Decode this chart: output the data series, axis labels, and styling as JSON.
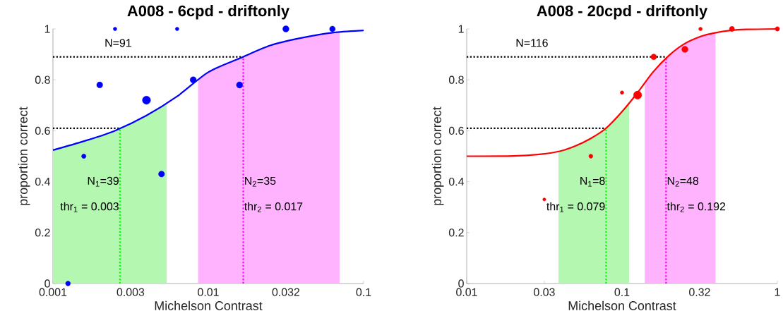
{
  "chart_data": [
    {
      "type": "line",
      "title": "A008 - 6cpd - driftonly",
      "xlabel": "Michelson Contrast",
      "ylabel": "proportion correct",
      "log": "x",
      "xlim": [
        0.001,
        0.1
      ],
      "xticks": [
        0.001,
        {
          "value": 0.00316,
          "label": "0.003"
        },
        0.01,
        {
          "value": 0.0316,
          "label": "0.032"
        },
        0.1
      ],
      "ylim": [
        0,
        1
      ],
      "yticks": [
        0,
        0.2,
        0.4,
        0.6,
        0.8,
        1
      ],
      "series": [
        {
          "type": "area",
          "color": "#b3f7b0",
          "x": [
            0.001,
            0.0016,
            0.0025,
            0.004,
            0.0054
          ],
          "values": [
            0.524,
            0.56,
            0.6,
            0.66,
            0.705
          ]
        },
        {
          "type": "area",
          "color": "#ffb3ff",
          "x": [
            0.0086,
            0.01,
            0.016,
            0.025,
            0.04,
            0.063,
            0.07
          ],
          "values": [
            0.8,
            0.83,
            0.885,
            0.935,
            0.965,
            0.985,
            0.987
          ]
        },
        {
          "color": "#0000ff",
          "x": [
            0.001,
            0.0016,
            0.0025,
            0.004,
            0.0063,
            0.01,
            0.016,
            0.025,
            0.04,
            0.063,
            0.1
          ],
          "values": [
            0.524,
            0.56,
            0.6,
            0.66,
            0.735,
            0.83,
            0.885,
            0.935,
            0.965,
            0.985,
            0.994
          ]
        },
        {
          "type": "bubble",
          "color": "#0000ff",
          "x": [
            0.00125,
            0.00158,
            0.002,
            0.00251,
            0.004,
            0.005,
            0.0063,
            0.008,
            0.0159,
            0.0316,
            0.063
          ],
          "values": [
            0,
            0.5,
            0.78,
            1,
            0.72,
            0.43,
            1,
            0.8,
            0.78,
            1,
            1
          ],
          "sizes": [
            0.35,
            0.3,
            0.55,
            0.2,
            1,
            0.55,
            0.2,
            0.6,
            0.6,
            0.6,
            0.5
          ]
        }
      ],
      "ref_lines": [
        {
          "axis": "y",
          "value": 0.61,
          "color": "#000000",
          "line_style": "dotted"
        },
        {
          "axis": "x",
          "value": 0.0027,
          "color": "#00ff00",
          "line_style": "dotted"
        },
        {
          "axis": "y",
          "value": 0.89,
          "color": "#000000",
          "line_style": "dotted"
        },
        {
          "axis": "x",
          "value": 0.0168,
          "color": "#ff00ff",
          "line_style": "dotted"
        }
      ],
      "annotations": [
        "N=91",
        {
          "text": "N$_{1}$=39",
          "x": 0.0027,
          "y": 0.4
        },
        {
          "text": "thr$_{1}$ = 0.003",
          "x": 0.0027,
          "y": 0.3
        },
        {
          "text": "N$_{2}$=35",
          "x": 0.0168,
          "y": 0.4
        },
        {
          "text": "thr$_{2}$ = 0.017",
          "x": 0.0168,
          "y": 0.3
        }
      ]
    },
    {
      "type": "line",
      "title": "A008 - 20cpd - driftonly",
      "xlabel": "Michelson Contrast",
      "ylabel": "proportion correct",
      "log": "x",
      "xlim": [
        0.01,
        1
      ],
      "xticks": [
        0.01,
        {
          "value": 0.0316,
          "label": "0.03"
        },
        0.1,
        {
          "value": 0.316,
          "label": "0.32"
        },
        1
      ],
      "ylim": [
        0,
        1
      ],
      "yticks": [
        0,
        0.2,
        0.4,
        0.6,
        0.8,
        1
      ],
      "series": [
        {
          "type": "area",
          "color": "#b3f7b0",
          "x": [
            0.039,
            0.05,
            0.063,
            0.079,
            0.1,
            0.111
          ],
          "values": [
            0.518,
            0.54,
            0.57,
            0.61,
            0.675,
            0.71
          ]
        },
        {
          "type": "area",
          "color": "#ffb3ff",
          "x": [
            0.14,
            0.158,
            0.2,
            0.25,
            0.32,
            0.4
          ],
          "values": [
            0.79,
            0.83,
            0.895,
            0.94,
            0.97,
            0.985
          ]
        },
        {
          "color": "#ff0000",
          "x": [
            0.01,
            0.02,
            0.03,
            0.04,
            0.05,
            0.063,
            0.079,
            0.1,
            0.126,
            0.158,
            0.2,
            0.25,
            0.32,
            0.4,
            0.5,
            0.63,
            1
          ],
          "values": [
            0.5,
            0.501,
            0.508,
            0.52,
            0.54,
            0.57,
            0.61,
            0.675,
            0.75,
            0.83,
            0.895,
            0.94,
            0.97,
            0.985,
            0.994,
            0.998,
            1
          ]
        },
        {
          "type": "bubble",
          "color": "#ff0000",
          "x": [
            0.0316,
            0.063,
            0.1,
            0.126,
            0.16,
            0.254,
            0.32,
            0.51,
            1
          ],
          "values": [
            0.33,
            0.5,
            0.75,
            0.74,
            0.89,
            0.92,
            1,
            1,
            1
          ],
          "sizes": [
            0.15,
            0.25,
            0.2,
            1,
            0.5,
            0.6,
            0.2,
            0.4,
            0.3
          ]
        }
      ],
      "ref_lines": [
        {
          "axis": "y",
          "value": 0.61,
          "color": "#000000",
          "line_style": "dotted"
        },
        {
          "axis": "x",
          "value": 0.079,
          "color": "#00ff00",
          "line_style": "dotted"
        },
        {
          "axis": "y",
          "value": 0.89,
          "color": "#000000",
          "line_style": "dotted"
        },
        {
          "axis": "x",
          "value": 0.192,
          "color": "#ff00ff",
          "line_style": "dotted"
        }
      ],
      "annotations": [
        "N=116",
        {
          "text": "N$_{1}$=8",
          "x": 0.079,
          "y": 0.4
        },
        {
          "text": "thr$_{1}$ = 0.079",
          "x": 0.079,
          "y": 0.3
        },
        {
          "text": "N$_{2}$=48",
          "x": 0.192,
          "y": 0.4
        },
        {
          "text": "thr$_{2}$ = 0.192",
          "x": 0.192,
          "y": 0.3
        }
      ]
    }
  ]
}
